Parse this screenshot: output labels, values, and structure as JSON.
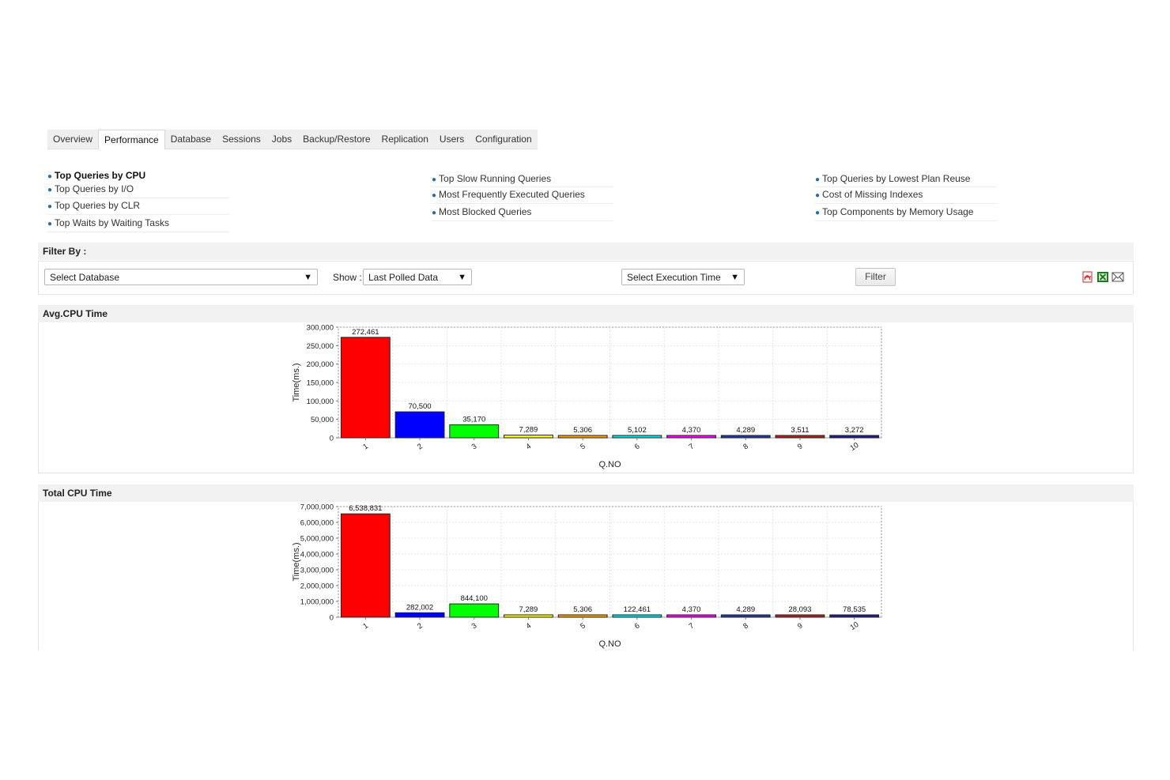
{
  "tabs": [
    "Overview",
    "Performance",
    "Database",
    "Sessions",
    "Jobs",
    "Backup/Restore",
    "Replication",
    "Users",
    "Configuration"
  ],
  "active_tab": "Performance",
  "links": {
    "col1": [
      "Top Queries by CPU",
      "Top Queries by I/O",
      "Top Queries by CLR",
      "Top Waits by Waiting Tasks"
    ],
    "col2": [
      "Top Slow Running Queries",
      "Most Frequently Executed Queries",
      "Most Blocked Queries"
    ],
    "col3": [
      "Top Queries by Lowest Plan Reuse",
      "Cost of Missing Indexes",
      "Top Components by Memory Usage"
    ]
  },
  "filter": {
    "heading": "Filter By :",
    "database": "Select Database",
    "show_label": "Show :",
    "show_value": "Last Polled Data",
    "exec_time": "Select Execution Time",
    "filter_button": "Filter"
  },
  "export_icons": [
    "pdf-icon",
    "excel-icon",
    "mail-icon"
  ],
  "sections": {
    "avg_title": "Avg.CPU Time",
    "total_title": "Total CPU Time"
  },
  "chart_data": [
    {
      "type": "bar",
      "xlabel": "Q.NO",
      "ylabel": "Time(ms.)",
      "categories": [
        "1",
        "2",
        "3",
        "4",
        "5",
        "6",
        "7",
        "8",
        "9",
        "10"
      ],
      "values": [
        272461,
        70500,
        35170,
        7289,
        5306,
        5102,
        4370,
        4289,
        3511,
        3272
      ],
      "value_labels": [
        "272,461",
        "70,500",
        "35,170",
        "7,289",
        "5,306",
        "5,102",
        "4,370",
        "4,289",
        "3,511",
        "3,272"
      ],
      "yticks": [
        "0",
        "50,000",
        "100,000",
        "150,000",
        "200,000",
        "250,000",
        "300,000"
      ],
      "ylim": [
        0,
        300000
      ],
      "colors": [
        "#ff0000",
        "#0000ff",
        "#00ff00",
        "#ffff00",
        "#ffa500",
        "#00e5e5",
        "#ff00ff",
        "#1e3a9e",
        "#b22222",
        "#1e1e8c"
      ],
      "grid": true
    },
    {
      "type": "bar",
      "xlabel": "Q.NO",
      "ylabel": "Time(ms.)",
      "categories": [
        "1",
        "2",
        "3",
        "4",
        "5",
        "6",
        "7",
        "8",
        "9",
        "10"
      ],
      "values": [
        6538831,
        282002,
        844100,
        7289,
        5306,
        122461,
        4370,
        4289,
        28093,
        78535
      ],
      "value_labels": [
        "6,538,831",
        "282,002",
        "844,100",
        "7,289",
        "5,306",
        "122,461",
        "4,370",
        "4,289",
        "28,093",
        "78,535"
      ],
      "yticks": [
        "0",
        "1,000,000",
        "2,000,000",
        "3,000,000",
        "4,000,000",
        "5,000,000",
        "6,000,000",
        "7,000,000"
      ],
      "ylim": [
        0,
        7000000
      ],
      "colors": [
        "#ff0000",
        "#0000ff",
        "#00ff00",
        "#ffff00",
        "#ffa500",
        "#00e5e5",
        "#ff00ff",
        "#1e3a9e",
        "#b22222",
        "#1e1e8c"
      ],
      "grid": true
    }
  ]
}
